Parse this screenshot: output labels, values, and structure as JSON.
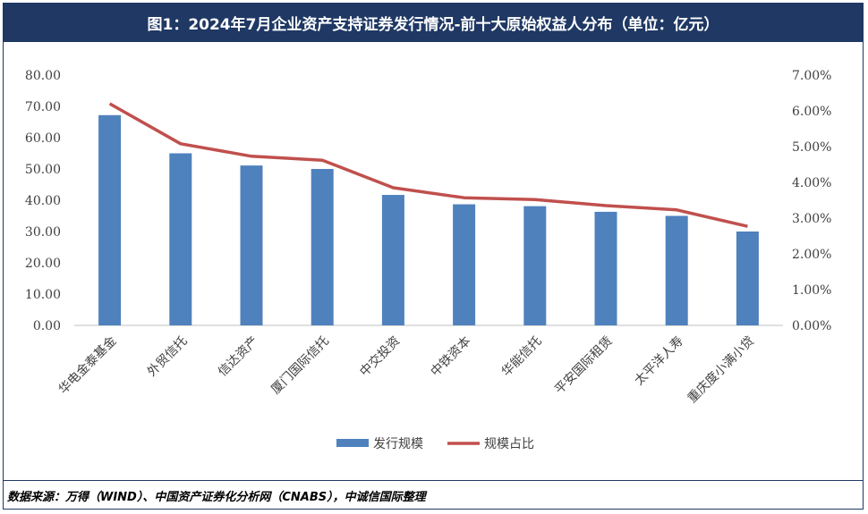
{
  "title": "图1：2024年7月企业资产支持证券发行情况-前十大原始权益人分布（单位：亿元）",
  "source": "数据来源：万得（WIND）、中国资产证券化分析网（CNABS），中诚信国际整理",
  "colors": {
    "bar": "#4f81bd",
    "line": "#c0504d",
    "title_bg": "#1f3864"
  },
  "chart_data": {
    "type": "bar",
    "categories": [
      "华电金泰基金",
      "外贸信托",
      "信达资产",
      "厦门国际信托",
      "中交投资",
      "中铁资本",
      "华能信托",
      "平安国际租赁",
      "太平洋人寿",
      "重庆度小满小贷"
    ],
    "series": [
      {
        "name": "发行规模",
        "type": "bar",
        "axis": "left",
        "values": [
          67.2,
          55.0,
          51.1,
          50.0,
          41.7,
          38.7,
          38.1,
          36.3,
          35.0,
          30.0
        ]
      },
      {
        "name": "规模占比",
        "type": "line",
        "axis": "right",
        "values": [
          6.2,
          5.08,
          4.73,
          4.62,
          3.85,
          3.57,
          3.52,
          3.35,
          3.23,
          2.77
        ]
      }
    ],
    "y_left": {
      "min": 0,
      "max": 80,
      "step": 10,
      "tick_labels": [
        "0.00",
        "10.00",
        "20.00",
        "30.00",
        "40.00",
        "50.00",
        "60.00",
        "70.00",
        "80.00"
      ]
    },
    "y_right": {
      "min": 0,
      "max": 7,
      "step": 1,
      "tick_labels": [
        "0.00%",
        "1.00%",
        "2.00%",
        "3.00%",
        "4.00%",
        "5.00%",
        "6.00%",
        "7.00%"
      ]
    },
    "legend": [
      "发行规模",
      "规模占比"
    ],
    "legend_position": "bottom",
    "grid": false
  }
}
